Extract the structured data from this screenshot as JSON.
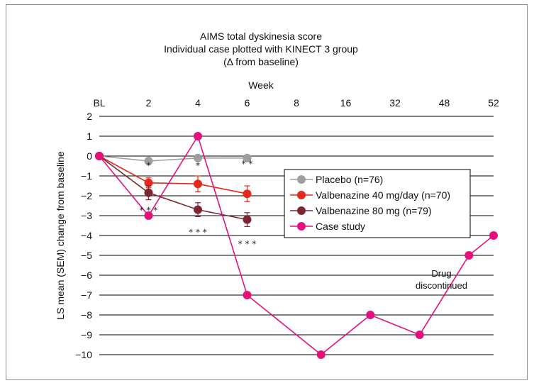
{
  "chart_data": {
    "type": "line",
    "title": [
      "AIMS total dyskinesia score",
      "Individual case plotted with KINECT 3 group",
      "(Δ from baseline)"
    ],
    "xlabel": "Week",
    "ylabel": "LS mean (SEM) change from baseline",
    "categories": [
      "BL",
      "2",
      "4",
      "6",
      "8",
      "16",
      "32",
      "48",
      "52"
    ],
    "ylim": [
      -10,
      2
    ],
    "yticks": [
      2,
      1,
      0,
      -1,
      -2,
      -3,
      -4,
      -5,
      -6,
      -7,
      -8,
      -9,
      -10
    ],
    "ytick_labels": [
      "2",
      "1",
      "0",
      "−1",
      "−2",
      "−3",
      "−4",
      "−5",
      "−6",
      "−7",
      "−8",
      "−9",
      "−10"
    ],
    "grid": "horizontal",
    "legend_position": "center-right",
    "series": [
      {
        "name": "Placebo (n=76)",
        "color": "#9e9e9e",
        "x": [
          "BL",
          "2",
          "4",
          "6"
        ],
        "y": [
          0,
          -0.25,
          -0.1,
          -0.1
        ],
        "err": [
          0,
          0,
          0,
          0
        ],
        "x_offset": [
          0,
          0,
          0,
          0
        ]
      },
      {
        "name": "Valbenazine 40 mg/day (n=70)",
        "color": "#e8271c",
        "x": [
          "BL",
          "2",
          "4",
          "6"
        ],
        "y": [
          0,
          -1.35,
          -1.4,
          -1.9
        ],
        "err": [
          0,
          0.25,
          0.4,
          0.4
        ],
        "x_offset": [
          0,
          0,
          0,
          0
        ]
      },
      {
        "name": "Valbenazine 80 mg (n=79)",
        "color": "#7e2630",
        "x": [
          "BL",
          "2",
          "4",
          "6"
        ],
        "y": [
          0,
          -1.85,
          -2.7,
          -3.2
        ],
        "err": [
          0,
          0.35,
          0.35,
          0.35
        ],
        "x_offset": [
          0,
          0,
          0,
          0
        ]
      },
      {
        "name": "Case study",
        "color": "#e6107d",
        "x": [
          "BL",
          "2",
          "4",
          "6",
          "8",
          "16",
          "32",
          "48",
          "52"
        ],
        "y": [
          0,
          -3,
          1,
          -7,
          -10,
          -8,
          -9,
          -5,
          -4
        ],
        "err": [
          0,
          0,
          0,
          0,
          0,
          0,
          0,
          0,
          0
        ],
        "x_offset": [
          0,
          0,
          0,
          0,
          0.5,
          0.5,
          0.5,
          0.5,
          0
        ]
      }
    ],
    "significance": [
      {
        "x": "2",
        "y": -0.45,
        "text": "*"
      },
      {
        "x": "4",
        "y": -0.45,
        "text": "*"
      },
      {
        "x": "6",
        "y": -0.35,
        "text": "* *"
      },
      {
        "x": "2",
        "y": -2.7,
        "text": "* * *"
      },
      {
        "x": "4",
        "y": -3.8,
        "text": "* * *"
      },
      {
        "x": "6",
        "y": -4.4,
        "text": "* * *"
      }
    ],
    "annotations": [
      {
        "text": "Drug",
        "x": "48",
        "y": -5.9
      },
      {
        "text": "discontinued",
        "x": "48",
        "y": -6.5
      }
    ]
  }
}
